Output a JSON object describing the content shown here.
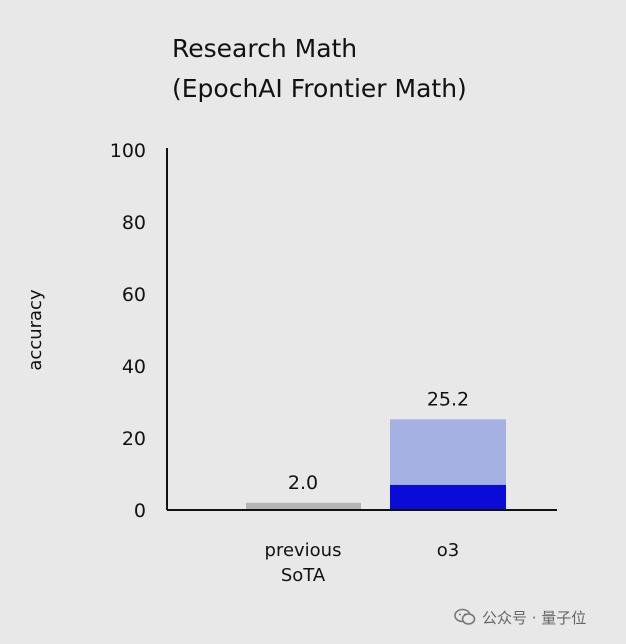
{
  "chart_data": {
    "type": "bar",
    "title_lines": [
      "Research Math",
      "(EpochAI Frontier Math)"
    ],
    "ylabel": "accuracy",
    "xlabel": "",
    "ylim": [
      0,
      100
    ],
    "yticks": [
      "0",
      "20",
      "40",
      "60",
      "80",
      "100"
    ],
    "categories": [
      {
        "label_lines": [
          "previous",
          "SoTA"
        ]
      },
      {
        "label_lines": [
          "o3"
        ]
      }
    ],
    "bars": [
      {
        "category": "previous SoTA",
        "value": 2.0,
        "value_label": "2.0",
        "color": "#b4b4b4",
        "segments": [
          {
            "value": 2.0,
            "color": "#b4b4b4"
          }
        ]
      },
      {
        "category": "o3",
        "value": 25.2,
        "value_label": "25.2",
        "color": "#a4b1e2",
        "segments": [
          {
            "value": 7.0,
            "color": "#0a0bd6"
          },
          {
            "value": 18.2,
            "color": "#a4b1e2"
          }
        ]
      }
    ],
    "grid": false,
    "colors": {
      "background": "#e8e8e8",
      "axis": "#111111",
      "text": "#111111"
    }
  },
  "watermark": {
    "icon": "wechat-icon",
    "text": "公众号 · 量子位"
  }
}
